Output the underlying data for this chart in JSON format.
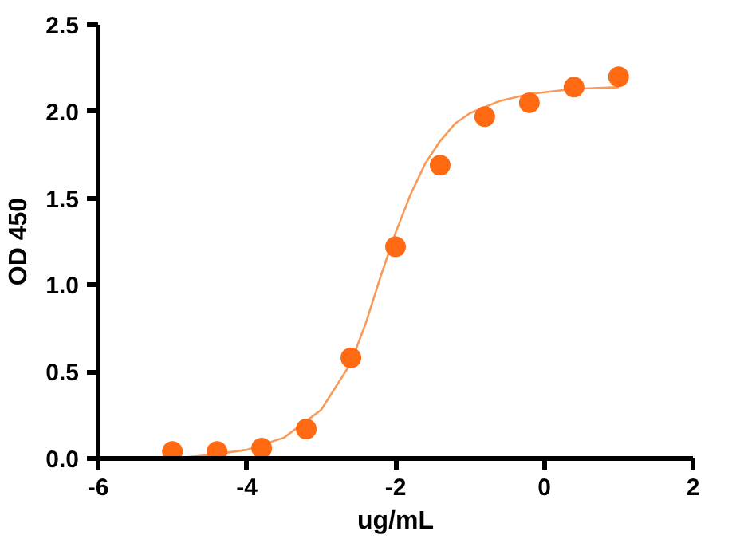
{
  "chart_data": {
    "type": "scatter",
    "xlabel": "ug/mL",
    "ylabel": "OD 450",
    "xlim": [
      -6,
      2
    ],
    "xticks": [
      -6,
      -4,
      -2,
      0,
      2
    ],
    "ylim": [
      0,
      2.5
    ],
    "yticks": [
      {
        "value": 0,
        "label": "0.0"
      },
      {
        "value": 0.5,
        "label": "0.5"
      },
      {
        "value": 1,
        "label": "1.0"
      },
      {
        "value": 1.5,
        "label": "1.5"
      },
      {
        "value": 2,
        "label": "2.0"
      },
      {
        "value": 2.5,
        "label": "2.5"
      }
    ],
    "grid": false,
    "marker": "circle",
    "series": [
      {
        "color": "#ff6a13",
        "x": [
          -5.0,
          -4.4,
          -3.8,
          -3.2,
          -2.6,
          -2.0,
          -1.4,
          -0.8,
          -0.2,
          0.4,
          1.0
        ],
        "values": [
          0.04,
          0.04,
          0.06,
          0.17,
          0.58,
          1.22,
          1.69,
          1.97,
          2.05,
          2.14,
          2.2
        ]
      },
      {
        "type": "line",
        "color": "#f79a5a",
        "marker": "none",
        "x": [
          -5,
          -4.5,
          -4,
          -3.5,
          -3,
          -2.6,
          -2.4,
          -2.2,
          -2,
          -1.8,
          -1.6,
          -1.4,
          -1.2,
          -1,
          -0.6,
          -0.2,
          0.4,
          1.0
        ],
        "values": [
          0.0,
          0.02,
          0.05,
          0.12,
          0.28,
          0.55,
          0.78,
          1.05,
          1.3,
          1.52,
          1.7,
          1.83,
          1.93,
          1.99,
          2.06,
          2.1,
          2.13,
          2.14
        ]
      }
    ]
  }
}
